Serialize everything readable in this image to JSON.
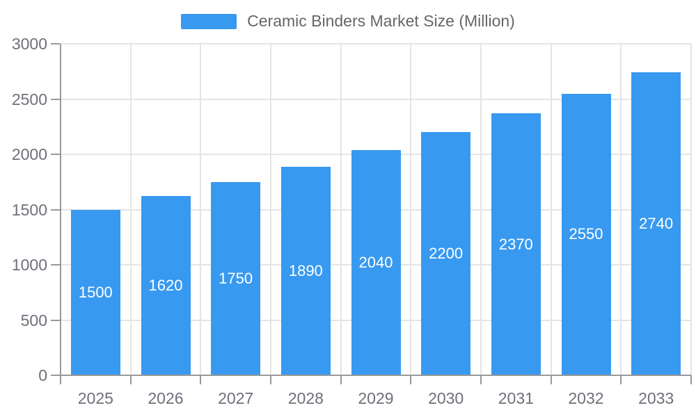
{
  "legend": {
    "label": "Ceramic Binders Market Size (Million)"
  },
  "chart_data": {
    "type": "bar",
    "title": "Ceramic Binders Market Size (Million)",
    "categories": [
      "2025",
      "2026",
      "2027",
      "2028",
      "2029",
      "2030",
      "2031",
      "2032",
      "2033"
    ],
    "values": [
      1500,
      1620,
      1750,
      1890,
      2040,
      2200,
      2370,
      2550,
      2740
    ],
    "value_labels": [
      "1500",
      "1620",
      "1750",
      "1890",
      "2040",
      "2200",
      "2370",
      "2550",
      "2740"
    ],
    "yticks": [
      "0",
      "500",
      "1000",
      "1500",
      "2000",
      "2500",
      "3000"
    ],
    "ylim": [
      0,
      3000
    ],
    "xlabel": "",
    "ylabel": "",
    "grid": true,
    "legend_position": "top-center",
    "bar_color": "#3899f0",
    "value_label_color": "#ffffff",
    "gridline_color": "#e4e4e4",
    "axis_color": "#999999",
    "axis_text_color": "#6e7079",
    "legend_text_color": "#666666",
    "background_color": "#ffffff"
  }
}
